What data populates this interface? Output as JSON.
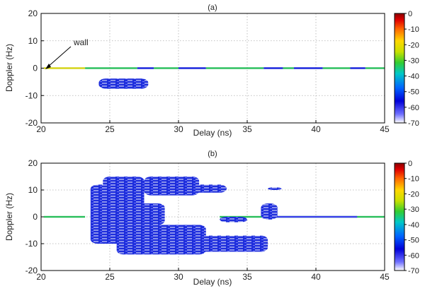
{
  "chart_data": [
    {
      "type": "heatmap",
      "panel_label": "(a)",
      "xlabel": "Delay (ns)",
      "ylabel": "Doppler (Hz)",
      "xlim": [
        20,
        45
      ],
      "ylim": [
        -20,
        20
      ],
      "xticks": [
        "20",
        "25",
        "30",
        "35",
        "40",
        "45"
      ],
      "yticks": [
        "20",
        "10",
        "0",
        "-10",
        "-20"
      ],
      "grid": true,
      "annotation": {
        "text": "wall",
        "x": 21,
        "y": 0
      },
      "colorbar": {
        "range": [
          -70,
          0
        ],
        "ticks": [
          "0",
          "-10",
          "-20",
          "-30",
          "-40",
          "-50",
          "-60",
          "-70"
        ]
      },
      "regions": [
        {
          "delay": [
            20.2,
            23.2
          ],
          "doppler": [
            0,
            0
          ],
          "level": -32
        },
        {
          "delay": [
            23.2,
            27.0
          ],
          "doppler": [
            0,
            0
          ],
          "level": -40
        },
        {
          "delay": [
            27.0,
            28.2
          ],
          "doppler": [
            0,
            0
          ],
          "level": -60
        },
        {
          "delay": [
            28.2,
            30.0
          ],
          "doppler": [
            0,
            0
          ],
          "level": -40
        },
        {
          "delay": [
            30.0,
            32.0
          ],
          "doppler": [
            0,
            0
          ],
          "level": -60
        },
        {
          "delay": [
            32.0,
            36.2
          ],
          "doppler": [
            0,
            0
          ],
          "level": -40
        },
        {
          "delay": [
            36.2,
            37.6
          ],
          "doppler": [
            0,
            0
          ],
          "level": -60
        },
        {
          "delay": [
            37.6,
            38.4
          ],
          "doppler": [
            0,
            0
          ],
          "level": -40
        },
        {
          "delay": [
            38.4,
            40.5
          ],
          "doppler": [
            0,
            0
          ],
          "level": -60
        },
        {
          "delay": [
            40.5,
            42.5
          ],
          "doppler": [
            0,
            0
          ],
          "level": -40
        },
        {
          "delay": [
            42.5,
            43.6
          ],
          "doppler": [
            0,
            0
          ],
          "level": -60
        },
        {
          "delay": [
            43.6,
            45.0
          ],
          "doppler": [
            0,
            0
          ],
          "level": -40
        },
        {
          "delay": [
            24.2,
            27.8
          ],
          "doppler": [
            -7.5,
            -3.8
          ],
          "level": -62
        }
      ]
    },
    {
      "type": "heatmap",
      "panel_label": "(b)",
      "xlabel": "Delay (ns)",
      "ylabel": "Doppler (Hz)",
      "xlim": [
        20,
        45
      ],
      "ylim": [
        -20,
        20
      ],
      "xticks": [
        "20",
        "25",
        "30",
        "35",
        "40",
        "45"
      ],
      "yticks": [
        "20",
        "10",
        "0",
        "-10",
        "-20"
      ],
      "grid": true,
      "colorbar": {
        "range": [
          -70,
          0
        ],
        "ticks": [
          "0",
          "-10",
          "-20",
          "-30",
          "-40",
          "-50",
          "-60",
          "-70"
        ]
      },
      "regions": [
        {
          "delay": [
            20.2,
            23.2
          ],
          "doppler": [
            0,
            0
          ],
          "level": -40
        },
        {
          "delay": [
            33.0,
            45.0
          ],
          "doppler": [
            0,
            0
          ],
          "level": -40
        },
        {
          "delay": [
            37.0,
            43.0
          ],
          "doppler": [
            0,
            0
          ],
          "level": -62
        },
        {
          "delay": [
            24.5,
            27.5
          ],
          "doppler": [
            3,
            15
          ],
          "level": -62
        },
        {
          "delay": [
            27.5,
            31.5
          ],
          "doppler": [
            8,
            15
          ],
          "level": -62
        },
        {
          "delay": [
            29.5,
            33.5
          ],
          "doppler": [
            9,
            12
          ],
          "level": -62
        },
        {
          "delay": [
            23.6,
            26.5
          ],
          "doppler": [
            -10,
            12
          ],
          "level": -62
        },
        {
          "delay": [
            25.0,
            29.0
          ],
          "doppler": [
            -3,
            5
          ],
          "level": -62
        },
        {
          "delay": [
            25.5,
            32.0
          ],
          "doppler": [
            -14,
            -3
          ],
          "level": -62
        },
        {
          "delay": [
            30.0,
            36.5
          ],
          "doppler": [
            -13,
            -7
          ],
          "level": -62
        },
        {
          "delay": [
            33.0,
            35.0
          ],
          "doppler": [
            -2,
            0
          ],
          "level": -62
        },
        {
          "delay": [
            36.0,
            37.2
          ],
          "doppler": [
            -1,
            5
          ],
          "level": -62
        },
        {
          "delay": [
            36.5,
            37.5
          ],
          "doppler": [
            10,
            11
          ],
          "level": -62
        }
      ]
    }
  ]
}
